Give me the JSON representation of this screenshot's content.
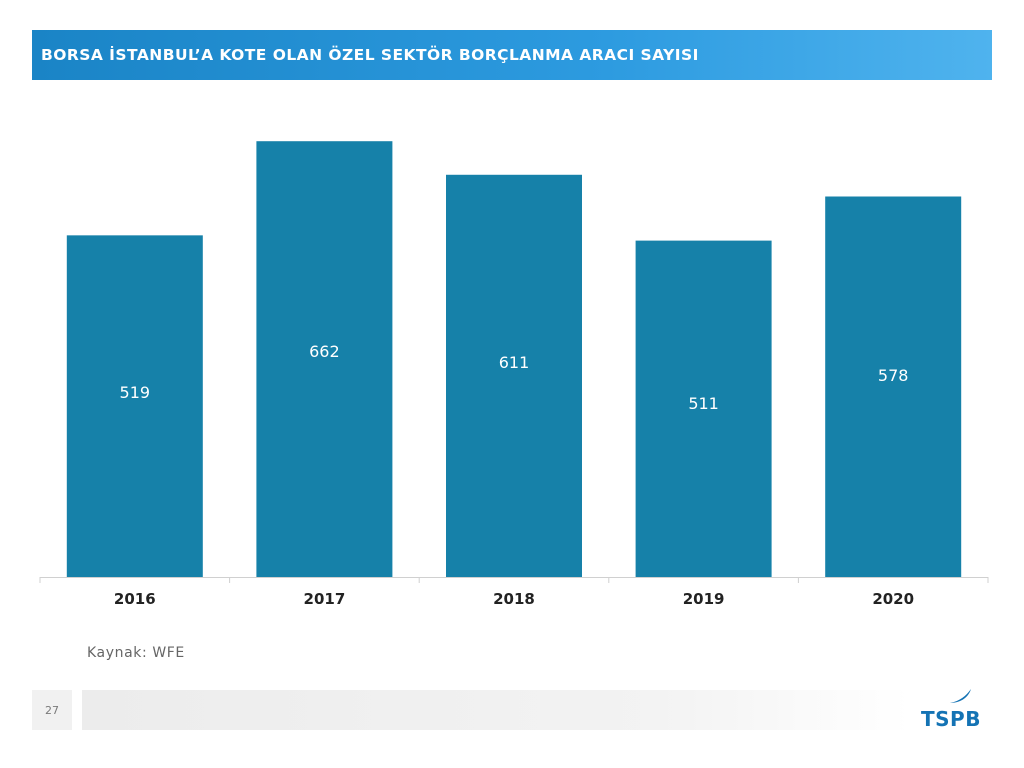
{
  "header": {
    "title": "BORSA İSTANBUL’A KOTE OLAN ÖZEL SEKTÖR BORÇLANMA ARACI SAYISI"
  },
  "chart_data": {
    "type": "bar",
    "categories": [
      "2016",
      "2017",
      "2018",
      "2019",
      "2020"
    ],
    "values": [
      519,
      662,
      611,
      511,
      578
    ],
    "title": "BORSA İSTANBUL’A KOTE OLAN ÖZEL SEKTÖR BORÇLANMA ARACI SAYISI",
    "xlabel": "",
    "ylabel": "",
    "ylim": [
      0,
      700
    ],
    "grid": false,
    "legend": "none",
    "data_labels": true,
    "bar_color": "#1681a9",
    "label_color": "#ffffff",
    "axis_color": "#d0d0d0"
  },
  "footer": {
    "source": "Kaynak: WFE",
    "page_number": "27",
    "logo_text": "TSPB",
    "logo_color": "#1473b4"
  }
}
